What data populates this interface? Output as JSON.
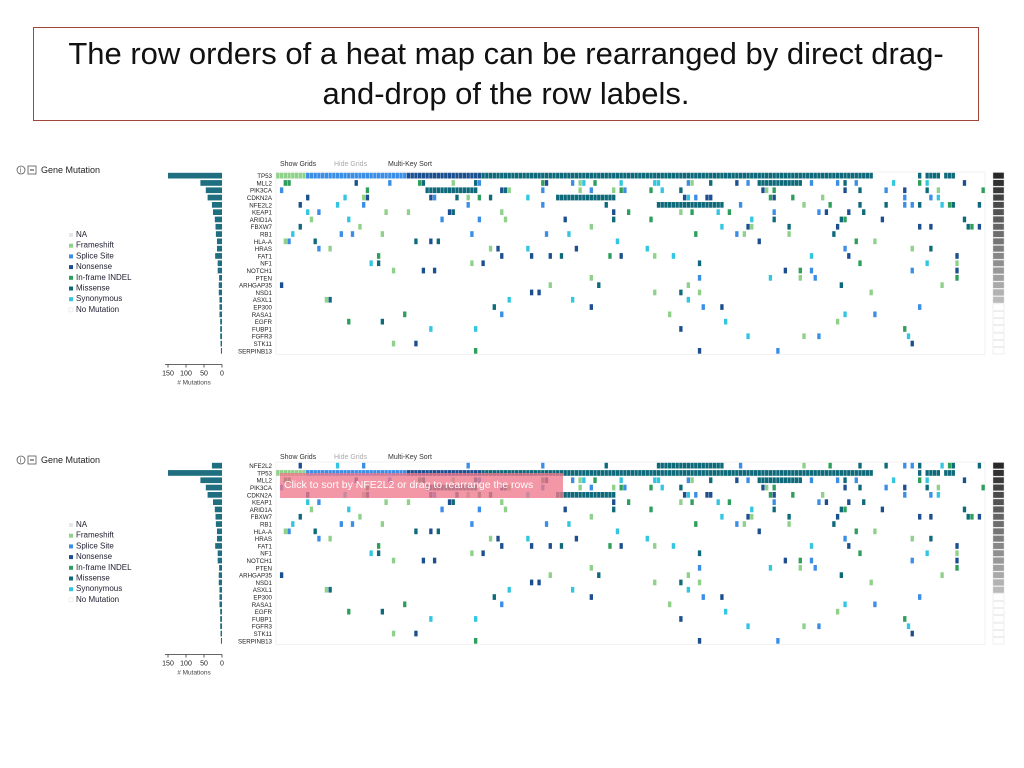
{
  "slide": {
    "title": "The row orders of a heat map can be rearranged by direct drag-and-drop of the row labels."
  },
  "panels": [
    {
      "heading": "Gene Mutation",
      "controls": [
        "Show Grids",
        "Hide Grids",
        "Multi-Key Sort"
      ],
      "axis_label": "# Mutations",
      "tooltip": "",
      "x_ticks": [
        "150",
        "100",
        "50",
        "0"
      ]
    },
    {
      "heading": "Gene Mutation",
      "controls": [
        "Show Grids",
        "Hide Grids",
        "Multi-Key Sort"
      ],
      "axis_label": "# Mutations",
      "tooltip": "Click to sort by NFE2L2 or drag to rearrange the rows",
      "x_ticks": [
        "150",
        "100",
        "50",
        "0"
      ]
    }
  ],
  "legend": {
    "items": [
      {
        "label": "NA",
        "color": "#e6e6e6"
      },
      {
        "label": "Frameshift",
        "color": "#8fd18a"
      },
      {
        "label": "Splice Site",
        "color": "#3a8ee6"
      },
      {
        "label": "Nonsense",
        "color": "#1c4f8f"
      },
      {
        "label": "In-frame INDEL",
        "color": "#2e9e5b"
      },
      {
        "label": "Missense",
        "color": "#0e6a7a"
      },
      {
        "label": "Synonymous",
        "color": "#33c6e0"
      },
      {
        "label": "No Mutation",
        "color": "#ffffff"
      }
    ]
  },
  "chart_data": [
    {
      "type": "heatmap",
      "title": "Gene Mutation",
      "rows": [
        "TP53",
        "MLL2",
        "PIK3CA",
        "CDKN2A",
        "NFE2L2",
        "KEAP1",
        "ARID1A",
        "FBXW7",
        "RB1",
        "HLA-A",
        "HRAS",
        "FAT1",
        "NF1",
        "NOTCH1",
        "PTEN",
        "ARHGAP35",
        "NSD1",
        "ASXL1",
        "EP300",
        "RASA1",
        "EGFR",
        "FUBP1",
        "FGFR3",
        "STK11",
        "SERPINB13"
      ],
      "mutation_counts": [
        165,
        60,
        45,
        40,
        28,
        25,
        20,
        18,
        17,
        14,
        14,
        19,
        12,
        12,
        8,
        9,
        9,
        7,
        7,
        7,
        5,
        5,
        5,
        4,
        3
      ],
      "xlim": [
        150,
        0
      ],
      "xlabel": "# Mutations",
      "legend": [
        "NA",
        "Frameshift",
        "Splice Site",
        "Nonsense",
        "In-frame INDEL",
        "Missense",
        "Synonymous",
        "No Mutation"
      ]
    },
    {
      "type": "heatmap",
      "title": "Gene Mutation",
      "rows": [
        "NFE2L2",
        "TP53",
        "MLL2",
        "PIK3CA",
        "CDKN2A",
        "KEAP1",
        "ARID1A",
        "FBXW7",
        "RB1",
        "HLA-A",
        "HRAS",
        "FAT1",
        "NF1",
        "NOTCH1",
        "PTEN",
        "ARHGAP35",
        "NSD1",
        "ASXL1",
        "EP300",
        "RASA1",
        "EGFR",
        "FUBP1",
        "FGFR3",
        "STK11",
        "SERPINB13"
      ],
      "mutation_counts": [
        28,
        165,
        60,
        45,
        40,
        25,
        20,
        18,
        17,
        14,
        14,
        19,
        12,
        12,
        8,
        9,
        9,
        7,
        7,
        7,
        5,
        5,
        5,
        4,
        3
      ],
      "xlim": [
        150,
        0
      ],
      "xlabel": "# Mutations",
      "legend": [
        "NA",
        "Frameshift",
        "Splice Site",
        "Nonsense",
        "In-frame INDEL",
        "Missense",
        "Synonymous",
        "No Mutation"
      ]
    }
  ]
}
